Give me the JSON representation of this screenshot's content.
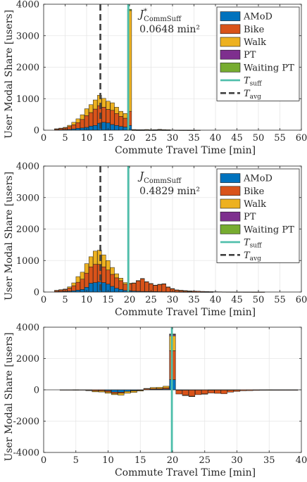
{
  "chart_data": [
    {
      "type": "bar",
      "stacked": true,
      "ylabel": "User Modal Share [users]",
      "xlabel": "Commute Travel Time [min]",
      "xlim": [
        0,
        60
      ],
      "ylim": [
        0,
        4000
      ],
      "xticks": [
        "0",
        "5",
        "10",
        "15",
        "20",
        "25",
        "30",
        "35",
        "40",
        "45",
        "50",
        "55",
        "60"
      ],
      "yticks": [
        "0",
        "1000",
        "2000",
        "3000",
        "4000"
      ],
      "grid": true,
      "legend_position": "top-right",
      "annotation": {
        "label": "J*CommSuff",
        "value": "0.0648 min²"
      },
      "t_suff": 19.7,
      "t_avg": 13.2,
      "x": [
        3,
        4,
        5,
        6,
        7,
        8,
        9,
        10,
        11,
        12,
        13,
        14,
        15,
        16,
        17,
        18,
        19,
        20,
        21,
        22,
        23,
        24,
        25,
        26,
        27,
        28,
        29,
        30,
        31,
        32,
        33,
        34,
        35,
        36,
        37,
        38,
        39,
        40,
        41,
        42,
        43,
        44,
        45,
        46,
        47,
        48,
        49,
        50,
        51,
        52,
        53,
        54,
        55,
        56,
        57,
        58,
        59
      ],
      "series": [
        {
          "name": "AMoD",
          "color": "#0072BD",
          "values": [
            10,
            15,
            20,
            25,
            40,
            60,
            70,
            90,
            130,
            150,
            220,
            250,
            230,
            180,
            150,
            120,
            100,
            150,
            2,
            1,
            1,
            2,
            1,
            1,
            2,
            1,
            1,
            0,
            0,
            0,
            0,
            0,
            0,
            0,
            0,
            0,
            0,
            0,
            0,
            0,
            0,
            0,
            0,
            0,
            0,
            0,
            0,
            0,
            0,
            0,
            0,
            0,
            0,
            0,
            0,
            0,
            0
          ]
        },
        {
          "name": "Bike",
          "color": "#D95319",
          "values": [
            30,
            40,
            50,
            90,
            130,
            180,
            270,
            370,
            430,
            520,
            560,
            480,
            430,
            450,
            380,
            320,
            280,
            450,
            10,
            8,
            10,
            12,
            8,
            10,
            15,
            10,
            8,
            5,
            3,
            2,
            2,
            1,
            1,
            1,
            0,
            0,
            0,
            0,
            0,
            0,
            0,
            0,
            0,
            0,
            0,
            0,
            0,
            0,
            0,
            0,
            0,
            0,
            0,
            0,
            0,
            0,
            0
          ]
        },
        {
          "name": "Walk",
          "color": "#EDB120",
          "values": [
            5,
            10,
            20,
            40,
            80,
            120,
            150,
            220,
            250,
            290,
            330,
            280,
            260,
            240,
            200,
            160,
            150,
            3200,
            10,
            8,
            6,
            8,
            5,
            6,
            10,
            8,
            5,
            3,
            2,
            1,
            1,
            1,
            1,
            0,
            0,
            0,
            0,
            0,
            0,
            0,
            0,
            0,
            0,
            0,
            0,
            0,
            0,
            0,
            0,
            0,
            0,
            0,
            0,
            0,
            0,
            0,
            0
          ]
        },
        {
          "name": "PT",
          "color": "#7E2F8E",
          "values": [
            0,
            0,
            0,
            0,
            0,
            0,
            0,
            0,
            0,
            0,
            0,
            0,
            0,
            0,
            0,
            0,
            0,
            0,
            0,
            0,
            0,
            0,
            0,
            0,
            0,
            0,
            0,
            0,
            0,
            0,
            0,
            0,
            0,
            0,
            0,
            0,
            0,
            0,
            0,
            0,
            0,
            0,
            0,
            0,
            0,
            0,
            0,
            0,
            0,
            0,
            0,
            0,
            0,
            0,
            0,
            0,
            0
          ]
        },
        {
          "name": "Waiting PT",
          "color": "#77AC30",
          "values": [
            0,
            0,
            0,
            0,
            0,
            0,
            0,
            0,
            0,
            0,
            0,
            0,
            0,
            0,
            0,
            0,
            0,
            40,
            0,
            0,
            0,
            0,
            0,
            0,
            0,
            0,
            0,
            0,
            0,
            0,
            0,
            0,
            0,
            0,
            0,
            0,
            0,
            0,
            0,
            0,
            0,
            0,
            0,
            0,
            0,
            0,
            0,
            0,
            0,
            0,
            0,
            0,
            0,
            0,
            0,
            0,
            0
          ]
        }
      ],
      "lines": [
        {
          "name": "Tsuff",
          "color": "#4DBEAA"
        },
        {
          "name": "Tavg",
          "color": "#404040"
        }
      ]
    },
    {
      "type": "bar",
      "stacked": true,
      "ylabel": "User Modal Share [users]",
      "xlabel": "Commute Travel Time [min]",
      "xlim": [
        0,
        60
      ],
      "ylim": [
        0,
        4000
      ],
      "xticks": [
        "0",
        "5",
        "10",
        "15",
        "20",
        "25",
        "30",
        "35",
        "40",
        "45",
        "50",
        "55",
        "60"
      ],
      "yticks": [
        "0",
        "1000",
        "2000",
        "3000",
        "4000"
      ],
      "grid": true,
      "legend_position": "top-right",
      "annotation": {
        "label": "JCommSuff",
        "value": "0.4829 min²"
      },
      "t_suff": 19.7,
      "t_avg": 13.2,
      "x": [
        3,
        4,
        5,
        6,
        7,
        8,
        9,
        10,
        11,
        12,
        13,
        14,
        15,
        16,
        17,
        18,
        19,
        20,
        21,
        22,
        23,
        24,
        25,
        26,
        27,
        28,
        29,
        30,
        31,
        32,
        33,
        34,
        35,
        36,
        37,
        38,
        39,
        40,
        41,
        42,
        43,
        44,
        45,
        46,
        47,
        48,
        49,
        50,
        51,
        52,
        53,
        54,
        55,
        56,
        57,
        58,
        59
      ],
      "series": [
        {
          "name": "AMoD",
          "color": "#0072BD",
          "values": [
            10,
            15,
            20,
            25,
            40,
            60,
            80,
            150,
            280,
            300,
            320,
            300,
            250,
            180,
            120,
            80,
            50,
            40,
            30,
            25,
            20,
            20,
            15,
            15,
            12,
            10,
            10,
            8,
            5,
            4,
            3,
            3,
            2,
            2,
            1,
            1,
            1,
            0,
            0,
            0,
            0,
            0,
            0,
            0,
            0,
            0,
            0,
            0,
            0,
            0,
            0,
            0,
            0,
            0,
            0,
            0,
            0
          ]
        },
        {
          "name": "Bike",
          "color": "#D95319",
          "values": [
            40,
            50,
            60,
            100,
            160,
            250,
            330,
            450,
            520,
            580,
            560,
            500,
            450,
            380,
            330,
            280,
            200,
            220,
            250,
            330,
            400,
            300,
            250,
            200,
            230,
            250,
            150,
            100,
            60,
            50,
            40,
            30,
            30,
            25,
            20,
            15,
            12,
            10,
            8,
            6,
            5,
            4,
            3,
            3,
            2,
            2,
            1,
            1,
            1,
            0,
            0,
            0,
            0,
            0,
            0,
            0,
            0
          ]
        },
        {
          "name": "Walk",
          "color": "#EDB120",
          "values": [
            5,
            10,
            15,
            40,
            90,
            180,
            220,
            300,
            320,
            420,
            450,
            380,
            300,
            220,
            130,
            80,
            50,
            20,
            10,
            10,
            10,
            8,
            6,
            5,
            4,
            3,
            3,
            2,
            2,
            1,
            1,
            1,
            0,
            0,
            0,
            0,
            0,
            0,
            0,
            0,
            0,
            0,
            0,
            0,
            0,
            0,
            0,
            0,
            0,
            0,
            0,
            0,
            0,
            0,
            0,
            0,
            0
          ]
        },
        {
          "name": "PT",
          "color": "#7E2F8E",
          "values": [
            0,
            0,
            0,
            0,
            0,
            0,
            0,
            0,
            0,
            0,
            0,
            0,
            0,
            0,
            0,
            0,
            0,
            0,
            0,
            0,
            0,
            0,
            0,
            0,
            0,
            0,
            0,
            0,
            0,
            0,
            0,
            0,
            0,
            0,
            0,
            0,
            0,
            0,
            0,
            0,
            0,
            0,
            0,
            0,
            0,
            0,
            0,
            0,
            0,
            0,
            0,
            0,
            0,
            0,
            0,
            0,
            0
          ]
        },
        {
          "name": "Waiting PT",
          "color": "#77AC30",
          "values": [
            0,
            0,
            0,
            0,
            0,
            0,
            0,
            0,
            0,
            0,
            0,
            0,
            0,
            0,
            0,
            0,
            0,
            0,
            0,
            0,
            0,
            0,
            0,
            0,
            0,
            0,
            0,
            0,
            0,
            0,
            0,
            0,
            0,
            0,
            0,
            0,
            0,
            0,
            0,
            0,
            0,
            0,
            0,
            0,
            0,
            0,
            0,
            0,
            0,
            0,
            0,
            0,
            0,
            0,
            0,
            0,
            0
          ]
        }
      ],
      "lines": [
        {
          "name": "Tsuff",
          "color": "#4DBEAA"
        },
        {
          "name": "Tavg",
          "color": "#404040"
        }
      ]
    },
    {
      "type": "bar",
      "stacked": true,
      "ylabel": "User Modal Share [users]",
      "xlabel": "Commute Travel Time [min]",
      "xlim": [
        0,
        40
      ],
      "ylim": [
        -4000,
        4000
      ],
      "xticks": [
        "0",
        "5",
        "10",
        "15",
        "20",
        "25",
        "30",
        "35",
        "40"
      ],
      "yticks": [
        "-4000",
        "-2000",
        "0",
        "2000",
        "4000"
      ],
      "grid": true,
      "t_suff": 19.9,
      "x": [
        3,
        4,
        5,
        6,
        7,
        8,
        9,
        10,
        11,
        12,
        13,
        14,
        15,
        16,
        17,
        18,
        19,
        20,
        21,
        22,
        23,
        24,
        25,
        26,
        27,
        28,
        29,
        30,
        31,
        32,
        33,
        34,
        35,
        36,
        37,
        38,
        39
      ],
      "series": [
        {
          "name": "AMoD",
          "color": "#0072BD",
          "values": [
            0,
            0,
            0,
            0,
            0,
            0,
            -10,
            -60,
            -150,
            -150,
            -100,
            -50,
            -20,
            0,
            30,
            40,
            50,
            650,
            -30,
            -25,
            -20,
            -20,
            -15,
            -15,
            -12,
            -10,
            -10,
            -8,
            -5,
            -4,
            -3,
            -3,
            -2,
            -2,
            -1,
            -1,
            -1
          ]
        },
        {
          "name": "Bike",
          "color": "#D95319",
          "values": [
            -10,
            -10,
            -10,
            -10,
            -30,
            -70,
            -60,
            -80,
            -90,
            -60,
            0,
            -20,
            -20,
            70,
            50,
            40,
            80,
            1850,
            -240,
            -320,
            -390,
            -290,
            -240,
            -190,
            -215,
            -240,
            -140,
            -95,
            -57,
            -48,
            -38,
            -29,
            -29,
            -24,
            -20,
            -15,
            -12
          ]
        },
        {
          "name": "Walk",
          "color": "#EDB120",
          "values": [
            0,
            0,
            5,
            0,
            -10,
            -60,
            -70,
            -80,
            -70,
            -130,
            -120,
            -100,
            -40,
            20,
            70,
            80,
            100,
            950,
            0,
            -2,
            -4,
            0,
            -1,
            1,
            6,
            5,
            2,
            1,
            0,
            0,
            0,
            0,
            1,
            0,
            0,
            0,
            0
          ]
        },
        {
          "name": "PT",
          "color": "#7E2F8E",
          "values": [
            0,
            0,
            0,
            0,
            0,
            0,
            0,
            0,
            0,
            0,
            0,
            0,
            0,
            0,
            0,
            0,
            0,
            80,
            0,
            0,
            0,
            0,
            0,
            0,
            0,
            0,
            0,
            0,
            0,
            0,
            0,
            0,
            0,
            0,
            0,
            0,
            0
          ]
        },
        {
          "name": "Waiting PT",
          "color": "#77AC30",
          "values": [
            0,
            0,
            0,
            0,
            0,
            0,
            0,
            0,
            0,
            0,
            0,
            0,
            0,
            0,
            0,
            0,
            0,
            40,
            0,
            0,
            0,
            0,
            0,
            0,
            0,
            0,
            0,
            0,
            0,
            0,
            0,
            0,
            0,
            0,
            0,
            0,
            0
          ]
        }
      ],
      "lines": [
        {
          "name": "Tsuff",
          "color": "#4DBEAA"
        }
      ]
    }
  ]
}
